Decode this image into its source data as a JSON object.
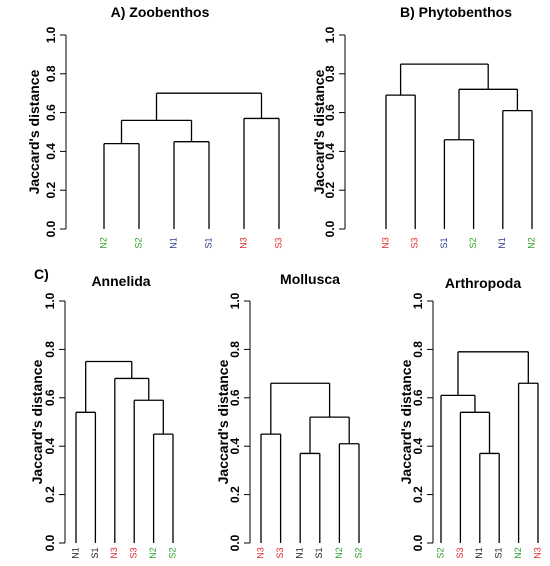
{
  "section_c_label": "C)",
  "chart_data": [
    {
      "type": "dendrogram",
      "title": "A) Zoobenthos",
      "ylabel": "Jaccard's distance",
      "ylim": [
        0,
        1
      ],
      "yticks": [
        "0.0",
        "0.2",
        "0.4",
        "0.6",
        "0.8",
        "1.0"
      ],
      "leaves": [
        {
          "label": "N2",
          "color": "#2ca02c"
        },
        {
          "label": "S2",
          "color": "#2ca02c"
        },
        {
          "label": "N1",
          "color": "#2b3a8c"
        },
        {
          "label": "S1",
          "color": "#2b3a8c"
        },
        {
          "label": "N3",
          "color": "#e32b2b"
        },
        {
          "label": "S3",
          "color": "#e32b2b"
        }
      ],
      "merges": [
        [
          0,
          1,
          0.44
        ],
        [
          2,
          3,
          0.45
        ],
        [
          4,
          5,
          0.57
        ],
        [
          6,
          7,
          0.56
        ],
        [
          9,
          8,
          0.7
        ]
      ]
    },
    {
      "type": "dendrogram",
      "title": "B) Phytobenthos",
      "ylabel": "Jaccard's distance",
      "ylim": [
        0,
        1
      ],
      "yticks": [
        "0.0",
        "0.2",
        "0.4",
        "0.6",
        "0.8",
        "1.0"
      ],
      "leaves": [
        {
          "label": "N3",
          "color": "#e32b2b"
        },
        {
          "label": "S3",
          "color": "#e32b2b"
        },
        {
          "label": "S1",
          "color": "#2b3a8c"
        },
        {
          "label": "S2",
          "color": "#2ca02c"
        },
        {
          "label": "N1",
          "color": "#2b3a8c"
        },
        {
          "label": "N2",
          "color": "#2ca02c"
        }
      ],
      "merges": [
        [
          0,
          1,
          0.69
        ],
        [
          2,
          3,
          0.46
        ],
        [
          4,
          5,
          0.61
        ],
        [
          7,
          8,
          0.72
        ],
        [
          6,
          9,
          0.85
        ]
      ]
    },
    {
      "type": "dendrogram",
      "title": "Annelida",
      "ylabel": "Jaccard's distance",
      "ylim": [
        0,
        1
      ],
      "yticks": [
        "0.0",
        "0.2",
        "0.4",
        "0.6",
        "0.8",
        "1.0"
      ],
      "leaves": [
        {
          "label": "N1",
          "color": "#222222"
        },
        {
          "label": "S1",
          "color": "#222222"
        },
        {
          "label": "N3",
          "color": "#e32b2b"
        },
        {
          "label": "S3",
          "color": "#e32b2b"
        },
        {
          "label": "N2",
          "color": "#2ca02c"
        },
        {
          "label": "S2",
          "color": "#2ca02c"
        }
      ],
      "merges": [
        [
          0,
          1,
          0.54
        ],
        [
          4,
          5,
          0.45
        ],
        [
          3,
          7,
          0.59
        ],
        [
          2,
          8,
          0.68
        ],
        [
          6,
          9,
          0.75
        ]
      ]
    },
    {
      "type": "dendrogram",
      "title": "Mollusca",
      "ylabel": "Jaccard's distance",
      "ylim": [
        0,
        1
      ],
      "yticks": [
        "0.0",
        "0.2",
        "0.4",
        "0.6",
        "0.8",
        "1.0"
      ],
      "leaves": [
        {
          "label": "N3",
          "color": "#e32b2b"
        },
        {
          "label": "S3",
          "color": "#e32b2b"
        },
        {
          "label": "N1",
          "color": "#222222"
        },
        {
          "label": "S1",
          "color": "#222222"
        },
        {
          "label": "N2",
          "color": "#2ca02c"
        },
        {
          "label": "S2",
          "color": "#2ca02c"
        }
      ],
      "merges": [
        [
          0,
          1,
          0.45
        ],
        [
          2,
          3,
          0.37
        ],
        [
          4,
          5,
          0.41
        ],
        [
          7,
          8,
          0.52
        ],
        [
          6,
          9,
          0.66
        ]
      ]
    },
    {
      "type": "dendrogram",
      "title": "Arthropoda",
      "ylabel": "Jaccard's distance",
      "ylim": [
        0,
        1
      ],
      "yticks": [
        "0.0",
        "0.2",
        "0.4",
        "0.6",
        "0.8",
        "1.0"
      ],
      "leaves": [
        {
          "label": "S2",
          "color": "#2ca02c"
        },
        {
          "label": "S3",
          "color": "#e32b2b"
        },
        {
          "label": "N1",
          "color": "#222222"
        },
        {
          "label": "S1",
          "color": "#222222"
        },
        {
          "label": "N2",
          "color": "#2ca02c"
        },
        {
          "label": "N3",
          "color": "#e32b2b"
        }
      ],
      "merges": [
        [
          2,
          3,
          0.37
        ],
        [
          1,
          6,
          0.54
        ],
        [
          0,
          7,
          0.61
        ],
        [
          4,
          5,
          0.66
        ],
        [
          8,
          9,
          0.79
        ]
      ]
    }
  ]
}
